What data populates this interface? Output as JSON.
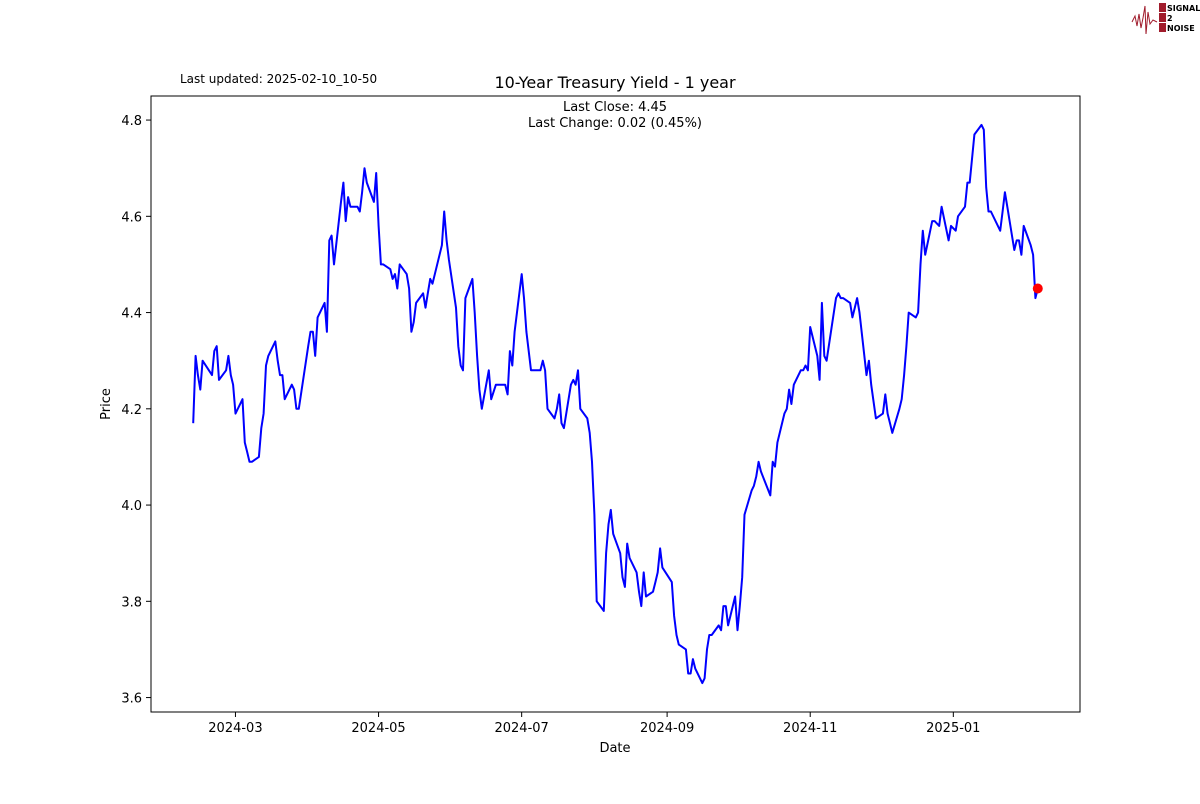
{
  "header": {
    "last_updated": "Last updated: 2025-02-10_10-50"
  },
  "logo": {
    "text_lines": [
      "SIGNAL",
      "2",
      "NOISE"
    ],
    "color": "#a01c2c"
  },
  "chart_data": {
    "type": "line",
    "title": "10-Year Treasury Yield - 1 year",
    "annotation_lines": [
      "Last Close: 4.45",
      "Last Change: 0.02 (0.45%)"
    ],
    "xlabel": "Date",
    "ylabel": "Price",
    "xlim": [
      "2024-01-25",
      "2025-02-24"
    ],
    "ylim": [
      3.57,
      4.85
    ],
    "x_ticks": [
      "2024-03",
      "2024-05",
      "2024-07",
      "2024-09",
      "2024-11",
      "2025-01"
    ],
    "y_ticks": [
      "3.6",
      "3.8",
      "4.0",
      "4.2",
      "4.4",
      "4.6",
      "4.8"
    ],
    "grid": false,
    "line_color": "#0000ff",
    "last_point_color": "#ff0000",
    "last_point": [
      "2025-02-06",
      4.45
    ],
    "points": [
      [
        "2024-02-12",
        4.17
      ],
      [
        "2024-02-13",
        4.31
      ],
      [
        "2024-02-14",
        4.27
      ],
      [
        "2024-02-15",
        4.24
      ],
      [
        "2024-02-16",
        4.3
      ],
      [
        "2024-02-20",
        4.27
      ],
      [
        "2024-02-21",
        4.32
      ],
      [
        "2024-02-22",
        4.33
      ],
      [
        "2024-02-23",
        4.26
      ],
      [
        "2024-02-26",
        4.28
      ],
      [
        "2024-02-27",
        4.31
      ],
      [
        "2024-02-28",
        4.27
      ],
      [
        "2024-02-29",
        4.25
      ],
      [
        "2024-03-01",
        4.19
      ],
      [
        "2024-03-04",
        4.22
      ],
      [
        "2024-03-05",
        4.13
      ],
      [
        "2024-03-06",
        4.11
      ],
      [
        "2024-03-07",
        4.09
      ],
      [
        "2024-03-08",
        4.09
      ],
      [
        "2024-03-11",
        4.1
      ],
      [
        "2024-03-12",
        4.16
      ],
      [
        "2024-03-13",
        4.19
      ],
      [
        "2024-03-14",
        4.29
      ],
      [
        "2024-03-15",
        4.31
      ],
      [
        "2024-03-18",
        4.34
      ],
      [
        "2024-03-19",
        4.3
      ],
      [
        "2024-03-20",
        4.27
      ],
      [
        "2024-03-21",
        4.27
      ],
      [
        "2024-03-22",
        4.22
      ],
      [
        "2024-03-25",
        4.25
      ],
      [
        "2024-03-26",
        4.24
      ],
      [
        "2024-03-27",
        4.2
      ],
      [
        "2024-03-28",
        4.2
      ],
      [
        "2024-04-01",
        4.33
      ],
      [
        "2024-04-02",
        4.36
      ],
      [
        "2024-04-03",
        4.36
      ],
      [
        "2024-04-04",
        4.31
      ],
      [
        "2024-04-05",
        4.39
      ],
      [
        "2024-04-08",
        4.42
      ],
      [
        "2024-04-09",
        4.36
      ],
      [
        "2024-04-10",
        4.55
      ],
      [
        "2024-04-11",
        4.56
      ],
      [
        "2024-04-12",
        4.5
      ],
      [
        "2024-04-15",
        4.63
      ],
      [
        "2024-04-16",
        4.67
      ],
      [
        "2024-04-17",
        4.59
      ],
      [
        "2024-04-18",
        4.64
      ],
      [
        "2024-04-19",
        4.62
      ],
      [
        "2024-04-22",
        4.62
      ],
      [
        "2024-04-23",
        4.61
      ],
      [
        "2024-04-24",
        4.65
      ],
      [
        "2024-04-25",
        4.7
      ],
      [
        "2024-04-26",
        4.67
      ],
      [
        "2024-04-29",
        4.63
      ],
      [
        "2024-04-30",
        4.69
      ],
      [
        "2024-05-01",
        4.58
      ],
      [
        "2024-05-02",
        4.5
      ],
      [
        "2024-05-03",
        4.5
      ],
      [
        "2024-05-06",
        4.49
      ],
      [
        "2024-05-07",
        4.47
      ],
      [
        "2024-05-08",
        4.48
      ],
      [
        "2024-05-09",
        4.45
      ],
      [
        "2024-05-10",
        4.5
      ],
      [
        "2024-05-13",
        4.48
      ],
      [
        "2024-05-14",
        4.45
      ],
      [
        "2024-05-15",
        4.36
      ],
      [
        "2024-05-16",
        4.38
      ],
      [
        "2024-05-17",
        4.42
      ],
      [
        "2024-05-20",
        4.44
      ],
      [
        "2024-05-21",
        4.41
      ],
      [
        "2024-05-22",
        4.44
      ],
      [
        "2024-05-23",
        4.47
      ],
      [
        "2024-05-24",
        4.46
      ],
      [
        "2024-05-28",
        4.54
      ],
      [
        "2024-05-29",
        4.61
      ],
      [
        "2024-05-30",
        4.55
      ],
      [
        "2024-05-31",
        4.51
      ],
      [
        "2024-06-03",
        4.41
      ],
      [
        "2024-06-04",
        4.33
      ],
      [
        "2024-06-05",
        4.29
      ],
      [
        "2024-06-06",
        4.28
      ],
      [
        "2024-06-07",
        4.43
      ],
      [
        "2024-06-10",
        4.47
      ],
      [
        "2024-06-11",
        4.4
      ],
      [
        "2024-06-12",
        4.31
      ],
      [
        "2024-06-13",
        4.24
      ],
      [
        "2024-06-14",
        4.2
      ],
      [
        "2024-06-17",
        4.28
      ],
      [
        "2024-06-18",
        4.22
      ],
      [
        "2024-06-20",
        4.25
      ],
      [
        "2024-06-21",
        4.25
      ],
      [
        "2024-06-24",
        4.25
      ],
      [
        "2024-06-25",
        4.23
      ],
      [
        "2024-06-26",
        4.32
      ],
      [
        "2024-06-27",
        4.29
      ],
      [
        "2024-06-28",
        4.36
      ],
      [
        "2024-07-01",
        4.48
      ],
      [
        "2024-07-02",
        4.43
      ],
      [
        "2024-07-03",
        4.36
      ],
      [
        "2024-07-05",
        4.28
      ],
      [
        "2024-07-08",
        4.28
      ],
      [
        "2024-07-09",
        4.28
      ],
      [
        "2024-07-10",
        4.3
      ],
      [
        "2024-07-11",
        4.28
      ],
      [
        "2024-07-12",
        4.2
      ],
      [
        "2024-07-15",
        4.18
      ],
      [
        "2024-07-16",
        4.2
      ],
      [
        "2024-07-17",
        4.23
      ],
      [
        "2024-07-18",
        4.17
      ],
      [
        "2024-07-19",
        4.16
      ],
      [
        "2024-07-22",
        4.25
      ],
      [
        "2024-07-23",
        4.26
      ],
      [
        "2024-07-24",
        4.25
      ],
      [
        "2024-07-25",
        4.28
      ],
      [
        "2024-07-26",
        4.2
      ],
      [
        "2024-07-29",
        4.18
      ],
      [
        "2024-07-30",
        4.15
      ],
      [
        "2024-07-31",
        4.09
      ],
      [
        "2024-08-01",
        3.98
      ],
      [
        "2024-08-02",
        3.8
      ],
      [
        "2024-08-05",
        3.78
      ],
      [
        "2024-08-06",
        3.9
      ],
      [
        "2024-08-07",
        3.96
      ],
      [
        "2024-08-08",
        3.99
      ],
      [
        "2024-08-09",
        3.94
      ],
      [
        "2024-08-12",
        3.9
      ],
      [
        "2024-08-13",
        3.85
      ],
      [
        "2024-08-14",
        3.83
      ],
      [
        "2024-08-15",
        3.92
      ],
      [
        "2024-08-16",
        3.89
      ],
      [
        "2024-08-19",
        3.86
      ],
      [
        "2024-08-20",
        3.82
      ],
      [
        "2024-08-21",
        3.79
      ],
      [
        "2024-08-22",
        3.86
      ],
      [
        "2024-08-23",
        3.81
      ],
      [
        "2024-08-26",
        3.82
      ],
      [
        "2024-08-27",
        3.84
      ],
      [
        "2024-08-28",
        3.86
      ],
      [
        "2024-08-29",
        3.91
      ],
      [
        "2024-08-30",
        3.87
      ],
      [
        "2024-09-03",
        3.84
      ],
      [
        "2024-09-04",
        3.77
      ],
      [
        "2024-09-05",
        3.73
      ],
      [
        "2024-09-06",
        3.71
      ],
      [
        "2024-09-09",
        3.7
      ],
      [
        "2024-09-10",
        3.65
      ],
      [
        "2024-09-11",
        3.65
      ],
      [
        "2024-09-12",
        3.68
      ],
      [
        "2024-09-13",
        3.66
      ],
      [
        "2024-09-16",
        3.63
      ],
      [
        "2024-09-17",
        3.64
      ],
      [
        "2024-09-18",
        3.7
      ],
      [
        "2024-09-19",
        3.73
      ],
      [
        "2024-09-20",
        3.73
      ],
      [
        "2024-09-23",
        3.75
      ],
      [
        "2024-09-24",
        3.74
      ],
      [
        "2024-09-25",
        3.79
      ],
      [
        "2024-09-26",
        3.79
      ],
      [
        "2024-09-27",
        3.75
      ],
      [
        "2024-09-30",
        3.81
      ],
      [
        "2024-10-01",
        3.74
      ],
      [
        "2024-10-02",
        3.79
      ],
      [
        "2024-10-03",
        3.85
      ],
      [
        "2024-10-04",
        3.98
      ],
      [
        "2024-10-07",
        4.03
      ],
      [
        "2024-10-08",
        4.04
      ],
      [
        "2024-10-09",
        4.06
      ],
      [
        "2024-10-10",
        4.09
      ],
      [
        "2024-10-11",
        4.07
      ],
      [
        "2024-10-15",
        4.02
      ],
      [
        "2024-10-16",
        4.09
      ],
      [
        "2024-10-17",
        4.08
      ],
      [
        "2024-10-18",
        4.13
      ],
      [
        "2024-10-21",
        4.19
      ],
      [
        "2024-10-22",
        4.2
      ],
      [
        "2024-10-23",
        4.24
      ],
      [
        "2024-10-24",
        4.21
      ],
      [
        "2024-10-25",
        4.25
      ],
      [
        "2024-10-28",
        4.28
      ],
      [
        "2024-10-29",
        4.28
      ],
      [
        "2024-10-30",
        4.29
      ],
      [
        "2024-10-31",
        4.28
      ],
      [
        "2024-11-01",
        4.37
      ],
      [
        "2024-11-04",
        4.31
      ],
      [
        "2024-11-05",
        4.26
      ],
      [
        "2024-11-06",
        4.42
      ],
      [
        "2024-11-07",
        4.31
      ],
      [
        "2024-11-08",
        4.3
      ],
      [
        "2024-11-12",
        4.43
      ],
      [
        "2024-11-13",
        4.44
      ],
      [
        "2024-11-14",
        4.43
      ],
      [
        "2024-11-15",
        4.43
      ],
      [
        "2024-11-18",
        4.42
      ],
      [
        "2024-11-19",
        4.39
      ],
      [
        "2024-11-20",
        4.41
      ],
      [
        "2024-11-21",
        4.43
      ],
      [
        "2024-11-22",
        4.4
      ],
      [
        "2024-11-25",
        4.27
      ],
      [
        "2024-11-26",
        4.3
      ],
      [
        "2024-11-27",
        4.25
      ],
      [
        "2024-11-29",
        4.18
      ],
      [
        "2024-12-02",
        4.19
      ],
      [
        "2024-12-03",
        4.23
      ],
      [
        "2024-12-04",
        4.19
      ],
      [
        "2024-12-05",
        4.17
      ],
      [
        "2024-12-06",
        4.15
      ],
      [
        "2024-12-09",
        4.2
      ],
      [
        "2024-12-10",
        4.22
      ],
      [
        "2024-12-11",
        4.27
      ],
      [
        "2024-12-12",
        4.33
      ],
      [
        "2024-12-13",
        4.4
      ],
      [
        "2024-12-16",
        4.39
      ],
      [
        "2024-12-17",
        4.4
      ],
      [
        "2024-12-18",
        4.5
      ],
      [
        "2024-12-19",
        4.57
      ],
      [
        "2024-12-20",
        4.52
      ],
      [
        "2024-12-23",
        4.59
      ],
      [
        "2024-12-24",
        4.59
      ],
      [
        "2024-12-26",
        4.58
      ],
      [
        "2024-12-27",
        4.62
      ],
      [
        "2024-12-30",
        4.55
      ],
      [
        "2024-12-31",
        4.58
      ],
      [
        "2025-01-02",
        4.57
      ],
      [
        "2025-01-03",
        4.6
      ],
      [
        "2025-01-06",
        4.62
      ],
      [
        "2025-01-07",
        4.67
      ],
      [
        "2025-01-08",
        4.67
      ],
      [
        "2025-01-10",
        4.77
      ],
      [
        "2025-01-13",
        4.79
      ],
      [
        "2025-01-14",
        4.78
      ],
      [
        "2025-01-15",
        4.66
      ],
      [
        "2025-01-16",
        4.61
      ],
      [
        "2025-01-17",
        4.61
      ],
      [
        "2025-01-21",
        4.57
      ],
      [
        "2025-01-22",
        4.61
      ],
      [
        "2025-01-23",
        4.65
      ],
      [
        "2025-01-24",
        4.62
      ],
      [
        "2025-01-27",
        4.53
      ],
      [
        "2025-01-28",
        4.55
      ],
      [
        "2025-01-29",
        4.55
      ],
      [
        "2025-01-30",
        4.52
      ],
      [
        "2025-01-31",
        4.58
      ],
      [
        "2025-02-03",
        4.54
      ],
      [
        "2025-02-04",
        4.52
      ],
      [
        "2025-02-05",
        4.43
      ],
      [
        "2025-02-06",
        4.45
      ]
    ]
  }
}
